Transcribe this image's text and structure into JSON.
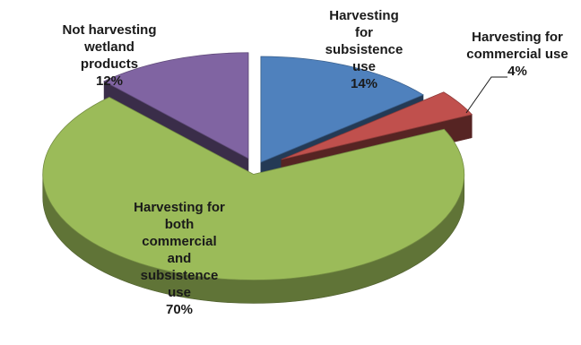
{
  "chart_data": {
    "type": "pie",
    "title": "",
    "slices": [
      {
        "label_lines": [
          "Harvesting",
          "for",
          "subsistence",
          "use"
        ],
        "value": 14,
        "value_label": "14%",
        "color": "#4f81bd"
      },
      {
        "label_lines": [
          "Harvesting for",
          "commercial use"
        ],
        "value": 4,
        "value_label": "4%",
        "color": "#c0504d"
      },
      {
        "label_lines": [
          "Harvesting for",
          "both",
          "commercial",
          "and",
          "subsistence",
          "use"
        ],
        "value": 70,
        "value_label": "70%",
        "color": "#9bbb59"
      },
      {
        "label_lines": [
          "Not harvesting",
          "wetland",
          "products"
        ],
        "value": 12,
        "value_label": "12%",
        "color": "#8064a2"
      }
    ]
  }
}
